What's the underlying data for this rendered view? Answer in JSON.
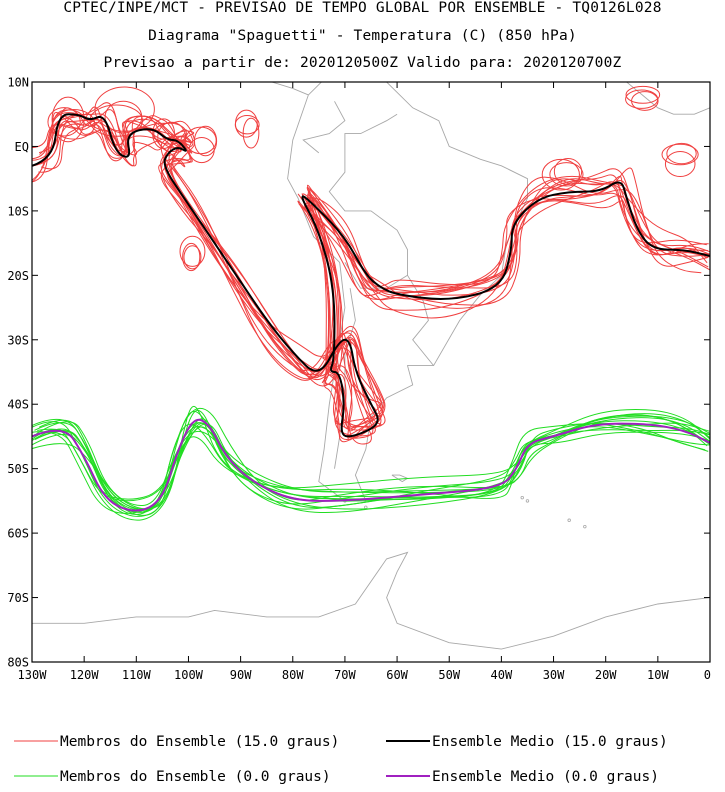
{
  "titles": {
    "line1": "CPTEC/INPE/MCT - PREVISAO DE TEMPO GLOBAL POR ENSEMBLE - TQ0126L028",
    "line2": "Diagrama \"Spaguetti\" - Temperatura (C) (850 hPa)",
    "line3": "Previsao a partir de: 2020120500Z  Valido para: 2020120700Z"
  },
  "axes": {
    "lat_labels": [
      "10N",
      "EQ",
      "10S",
      "20S",
      "30S",
      "40S",
      "50S",
      "60S",
      "70S",
      "80S"
    ],
    "lon_labels": [
      "130W",
      "120W",
      "110W",
      "100W",
      "90W",
      "80W",
      "70W",
      "60W",
      "50W",
      "40W",
      "30W",
      "20W",
      "10W",
      "0"
    ],
    "lat_range": [
      -80,
      10
    ],
    "lon_range": [
      -130,
      0
    ]
  },
  "colors": {
    "member_15": "#f04040",
    "mean_15": "#000000",
    "member_0": "#22dd22",
    "mean_0": "#a020c0",
    "coast": "#a8a8a8"
  },
  "legend": {
    "items": [
      {
        "label": "Membros do Ensemble (15.0 graus)",
        "color": "#f04040",
        "key": "member_15"
      },
      {
        "label": "Ensemble Medio (15.0 graus)",
        "color": "#000000",
        "key": "mean_15"
      },
      {
        "label": "Membros do Ensemble (0.0 graus)",
        "color": "#22dd22",
        "key": "member_0"
      },
      {
        "label": "Ensemble Medio (0.0 graus)",
        "color": "#a020c0",
        "key": "mean_0"
      }
    ]
  },
  "chart_data": {
    "type": "line",
    "projection": "equirectangular",
    "xlabel": "",
    "ylabel": "",
    "xlim": [
      -130,
      0
    ],
    "ylim": [
      -80,
      10
    ],
    "contours": [
      {
        "level": "15.0 graus",
        "kind": "ensemble_mean",
        "segments": [
          [
            [
              -130,
              -3
            ],
            [
              -126,
              -2
            ],
            [
              -125,
              5
            ],
            [
              -121,
              5
            ],
            [
              -119,
              4
            ],
            [
              -116,
              5
            ],
            [
              -114,
              -1
            ],
            [
              -111,
              -2
            ],
            [
              -112,
              2
            ],
            [
              -107,
              3
            ],
            [
              -104,
              1
            ],
            [
              -102,
              1
            ],
            [
              -100,
              -1
            ],
            [
              -102,
              0
            ],
            [
              -104,
              -1
            ],
            [
              -105,
              -3
            ],
            [
              -100,
              -9
            ],
            [
              -95,
              -15
            ],
            [
              -90,
              -21
            ],
            [
              -85,
              -27
            ],
            [
              -80,
              -32
            ],
            [
              -75,
              -36
            ],
            [
              -71,
              -30
            ],
            [
              -69,
              -30
            ],
            [
              -68,
              -35
            ],
            [
              -65,
              -40
            ],
            [
              -63,
              -43
            ],
            [
              -68,
              -45
            ],
            [
              -71,
              -45
            ],
            [
              -70,
              -40
            ],
            [
              -71,
              -35
            ],
            [
              -73,
              -35
            ],
            [
              -72,
              -33
            ],
            [
              -72,
              -22
            ],
            [
              -75,
              -13
            ],
            [
              -79,
              -7
            ],
            [
              -76,
              -9
            ],
            [
              -70,
              -14
            ],
            [
              -66,
              -20
            ],
            [
              -63,
              -22
            ],
            [
              -60,
              -23
            ],
            [
              -50,
              -24
            ],
            [
              -40,
              -22
            ],
            [
              -38,
              -16
            ],
            [
              -38,
              -12
            ],
            [
              -33,
              -8
            ],
            [
              -27,
              -7
            ],
            [
              -21,
              -7
            ],
            [
              -17,
              -5
            ],
            [
              -16,
              -8
            ],
            [
              -14,
              -13
            ],
            [
              -11,
              -16
            ],
            [
              -5,
              -16
            ],
            [
              0,
              -17
            ]
          ]
        ]
      },
      {
        "level": "0.0 graus",
        "kind": "ensemble_mean",
        "segments": [
          [
            [
              -130,
              -45
            ],
            [
              -124,
              -43
            ],
            [
              -120,
              -48
            ],
            [
              -116,
              -55
            ],
            [
              -110,
              -57
            ],
            [
              -105,
              -55
            ],
            [
              -102,
              -47
            ],
            [
              -99,
              -42
            ],
            [
              -96,
              -43
            ],
            [
              -93,
              -48
            ],
            [
              -88,
              -52
            ],
            [
              -80,
              -55
            ],
            [
              -70,
              -55
            ],
            [
              -55,
              -54
            ],
            [
              -40,
              -53
            ],
            [
              -37,
              -50
            ],
            [
              -35,
              -46
            ],
            [
              -30,
              -45
            ],
            [
              -22,
              -43
            ],
            [
              -12,
              -43
            ],
            [
              -5,
              -44
            ],
            [
              0,
              -46
            ]
          ]
        ]
      },
      {
        "level": "15.0 graus",
        "kind": "ensemble_members",
        "count": 14
      },
      {
        "level": "0.0 graus",
        "kind": "ensemble_members",
        "count": 14
      }
    ]
  }
}
